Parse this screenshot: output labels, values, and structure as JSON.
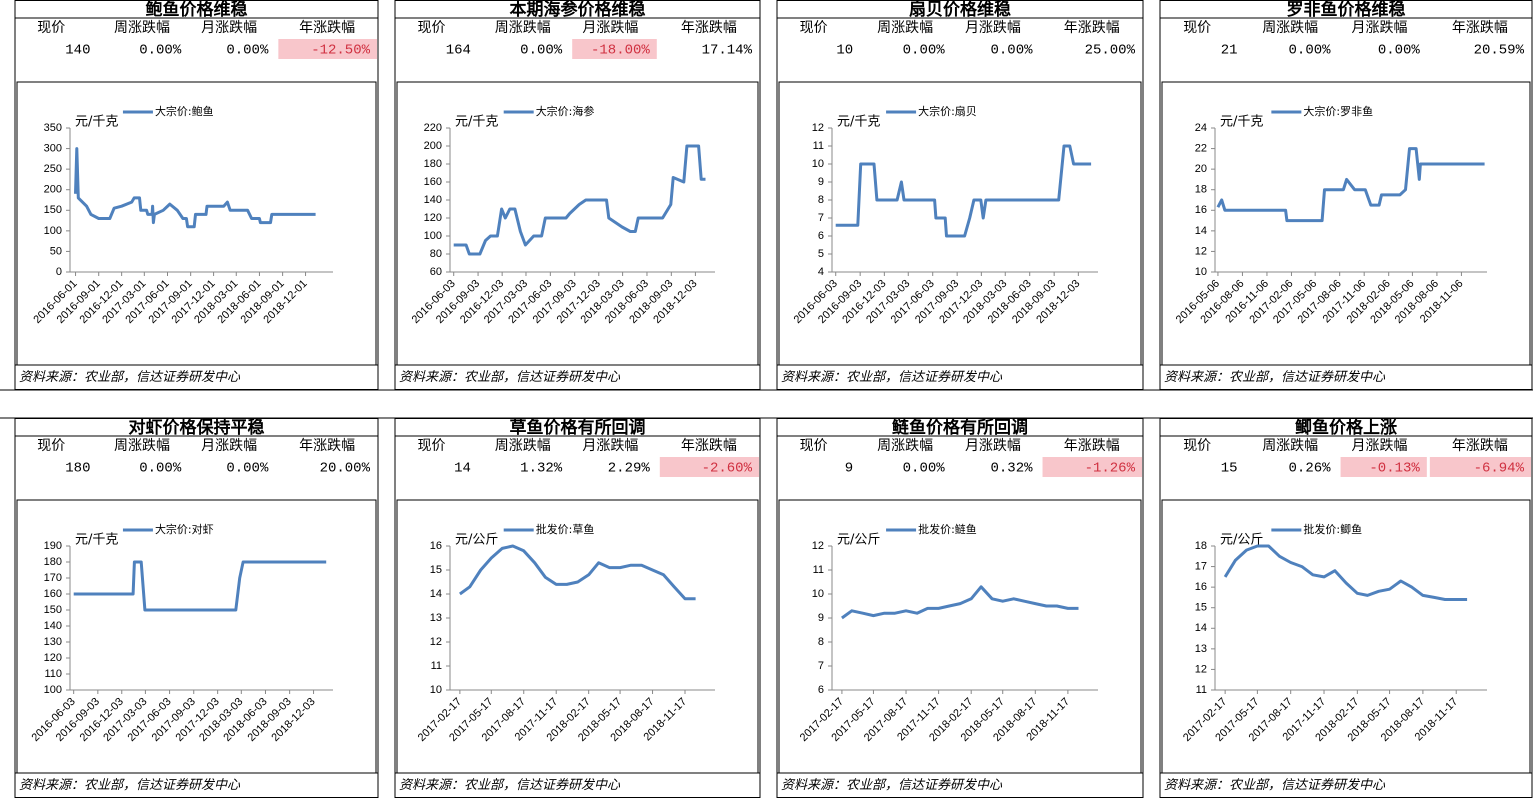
{
  "panels": [
    {
      "title": "鲍鱼价格维稳",
      "headers": [
        "现价",
        "周涨跌幅",
        "月涨跌幅",
        "年涨跌幅"
      ],
      "values": [
        "140",
        "0.00%",
        "0.00%",
        "-12.50%"
      ],
      "highlight": [
        3
      ],
      "source": "资料来源：农业部，信达证券研发中心"
    },
    {
      "title": "本期海参价格维稳",
      "headers": [
        "现价",
        "周涨跌幅",
        "月涨跌幅",
        "年涨跌幅"
      ],
      "values": [
        "164",
        "0.00%",
        "-18.00%",
        "17.14%"
      ],
      "highlight": [
        2
      ],
      "source": "资料来源：农业部，信达证券研发中心"
    },
    {
      "title": "扇贝价格维稳",
      "headers": [
        "现价",
        "周涨跌幅",
        "月涨跌幅",
        "年涨跌幅"
      ],
      "values": [
        "10",
        "0.00%",
        "0.00%",
        "25.00%"
      ],
      "highlight": [],
      "source": "资料来源：农业部，信达证券研发中心"
    },
    {
      "title": "罗非鱼价格维稳",
      "headers": [
        "现价",
        "周涨跌幅",
        "月涨跌幅",
        "年涨跌幅"
      ],
      "values": [
        "21",
        "0.00%",
        "0.00%",
        "20.59%"
      ],
      "highlight": [],
      "source": "资料来源：农业部，信达证券研发中心"
    },
    {
      "title": "对虾价格保持平稳",
      "headers": [
        "现价",
        "周涨跌幅",
        "月涨跌幅",
        "年涨跌幅"
      ],
      "values": [
        "180",
        "0.00%",
        "0.00%",
        "20.00%"
      ],
      "highlight": [],
      "source": "资料来源：农业部，信达证券研发中心"
    },
    {
      "title": "草鱼价格有所回调",
      "headers": [
        "现价",
        "周涨跌幅",
        "月涨跌幅",
        "年涨跌幅"
      ],
      "values": [
        "14",
        "1.32%",
        "2.29%",
        "-2.60%"
      ],
      "highlight": [
        3
      ],
      "source": "资料来源：农业部，信达证券研发中心"
    },
    {
      "title": "鲢鱼价格有所回调",
      "headers": [
        "现价",
        "周涨跌幅",
        "月涨跌幅",
        "年涨跌幅"
      ],
      "values": [
        "9",
        "0.00%",
        "0.32%",
        "-1.26%"
      ],
      "highlight": [
        3
      ],
      "source": "资料来源：农业部，信达证券研发中心"
    },
    {
      "title": "鲫鱼价格上涨",
      "headers": [
        "现价",
        "周涨跌幅",
        "月涨跌幅",
        "年涨跌幅"
      ],
      "values": [
        "15",
        "0.26%",
        "-0.13%",
        "-6.94%"
      ],
      "highlight": [
        2,
        3
      ],
      "source": "资料来源：农业部，信达证券研发中心"
    }
  ],
  "chart_data": [
    {
      "type": "line",
      "unit": "元/千克",
      "xlim": [
        "2016-05-10",
        "2019-03-20"
      ],
      "xticks": [
        "2016-06-01",
        "2016-09-01",
        "2016-12-01",
        "2017-03-01",
        "2017-06-01",
        "2017-09-01",
        "2017-12-01",
        "2018-03-01",
        "2018-06-01",
        "2018-09-01",
        "2018-12-01"
      ],
      "ylim": [
        0,
        350
      ],
      "yticks": [
        0,
        50,
        100,
        150,
        200,
        250,
        300,
        350
      ],
      "x": [
        "2016-06-01",
        "2016-06-06",
        "2016-06-12",
        "2016-07-15",
        "2016-08-01",
        "2016-09-01",
        "2016-10-15",
        "2016-11-01",
        "2016-12-01",
        "2017-01-10",
        "2017-01-20",
        "2017-02-10",
        "2017-02-15",
        "2017-03-10",
        "2017-03-15",
        "2017-04-01",
        "2017-04-03",
        "2017-04-06",
        "2017-04-10",
        "2017-05-15",
        "2017-06-10",
        "2017-07-10",
        "2017-08-01",
        "2017-08-15",
        "2017-08-20",
        "2017-09-15",
        "2017-09-20",
        "2017-11-01",
        "2017-11-05",
        "2018-01-10",
        "2018-01-25",
        "2018-02-05",
        "2018-04-15",
        "2018-05-01",
        "2018-06-01",
        "2018-06-05",
        "2018-07-15",
        "2018-07-20",
        "2018-12-01",
        "2019-01-10"
      ],
      "series": [
        {
          "name": "大宗价:鲍鱼",
          "color": "#4f81bd",
          "values": [
            190,
            300,
            180,
            160,
            140,
            130,
            130,
            155,
            160,
            170,
            180,
            180,
            150,
            150,
            140,
            140,
            160,
            120,
            140,
            150,
            165,
            150,
            130,
            130,
            110,
            110,
            140,
            140,
            160,
            160,
            170,
            150,
            150,
            130,
            130,
            120,
            120,
            140,
            140,
            140
          ]
        }
      ]
    },
    {
      "type": "line",
      "unit": "元/千克",
      "xlim": [
        "2016-05-20",
        "2019-02-15"
      ],
      "xticks": [
        "2016-06-03",
        "2016-09-03",
        "2016-12-03",
        "2017-03-03",
        "2017-06-03",
        "2017-09-03",
        "2017-12-03",
        "2018-03-03",
        "2018-06-03",
        "2018-09-03",
        "2018-12-03"
      ],
      "ylim": [
        60,
        220
      ],
      "yticks": [
        60,
        80,
        100,
        120,
        140,
        160,
        180,
        200,
        220
      ],
      "x": [
        "2016-06-03",
        "2016-07-20",
        "2016-08-01",
        "2016-09-10",
        "2016-10-01",
        "2016-10-20",
        "2016-11-15",
        "2016-12-01",
        "2016-12-15",
        "2017-01-01",
        "2017-01-20",
        "2017-02-10",
        "2017-03-01",
        "2017-04-01",
        "2017-05-01",
        "2017-05-15",
        "2017-08-01",
        "2017-08-15",
        "2017-09-20",
        "2017-10-15",
        "2018-01-01",
        "2018-01-10",
        "2018-03-01",
        "2018-04-01",
        "2018-04-20",
        "2018-05-01",
        "2018-08-01",
        "2018-09-01",
        "2018-09-10",
        "2018-10-20",
        "2018-11-01",
        "2018-12-15",
        "2018-12-25",
        "2019-01-10"
      ],
      "series": [
        {
          "name": "大宗价:海参",
          "color": "#4f81bd",
          "values": [
            90,
            90,
            80,
            80,
            95,
            100,
            100,
            130,
            120,
            130,
            130,
            105,
            90,
            100,
            100,
            120,
            120,
            125,
            135,
            140,
            140,
            120,
            110,
            105,
            105,
            120,
            120,
            135,
            165,
            160,
            200,
            200,
            163,
            163
          ]
        }
      ]
    },
    {
      "type": "line",
      "unit": "元/千克",
      "xlim": [
        "2016-05-20",
        "2019-02-15"
      ],
      "xticks": [
        "2016-06-03",
        "2016-09-03",
        "2016-12-03",
        "2017-03-03",
        "2017-06-03",
        "2017-09-03",
        "2017-12-03",
        "2018-03-03",
        "2018-06-03",
        "2018-09-03",
        "2018-12-03"
      ],
      "ylim": [
        4,
        12
      ],
      "yticks": [
        4,
        5,
        6,
        7,
        8,
        9,
        10,
        11,
        12
      ],
      "x": [
        "2016-06-03",
        "2016-08-25",
        "2016-09-05",
        "2016-10-25",
        "2016-11-05",
        "2017-01-20",
        "2017-02-05",
        "2017-02-15",
        "2017-06-10",
        "2017-06-15",
        "2017-07-20",
        "2017-07-25",
        "2017-10-01",
        "2017-10-20",
        "2017-11-05",
        "2017-12-01",
        "2017-12-10",
        "2017-12-20",
        "2018-09-20",
        "2018-10-10",
        "2018-11-01",
        "2018-11-15",
        "2019-01-20"
      ],
      "series": [
        {
          "name": "大宗价:扇贝",
          "color": "#4f81bd",
          "values": [
            6.6,
            6.6,
            10,
            10,
            8,
            8,
            9,
            8,
            8,
            7,
            7,
            6,
            6,
            7,
            8,
            8,
            7,
            8,
            8,
            11,
            11,
            10,
            10
          ]
        }
      ]
    },
    {
      "type": "line",
      "unit": "元/千克",
      "xlim": [
        "2016-04-25",
        "2019-02-10"
      ],
      "xticks": [
        "2016-05-06",
        "2016-08-06",
        "2016-11-06",
        "2017-02-06",
        "2017-05-06",
        "2017-08-06",
        "2017-11-06",
        "2018-02-06",
        "2018-05-06",
        "2018-08-06",
        "2018-11-06"
      ],
      "ylim": [
        10,
        24
      ],
      "yticks": [
        10,
        12,
        14,
        16,
        18,
        20,
        22,
        24
      ],
      "x": [
        "2016-05-06",
        "2016-05-20",
        "2016-06-01",
        "2017-01-15",
        "2017-01-20",
        "2017-06-01",
        "2017-06-10",
        "2017-08-20",
        "2017-09-01",
        "2017-10-01",
        "2017-11-10",
        "2017-12-01",
        "2018-01-01",
        "2018-01-10",
        "2018-03-20",
        "2018-04-10",
        "2018-04-25",
        "2018-05-20",
        "2018-06-01",
        "2018-06-05",
        "2019-02-01"
      ],
      "series": [
        {
          "name": "大宗价:罗非鱼",
          "color": "#4f81bd",
          "values": [
            16.3,
            17,
            16,
            16,
            15,
            15,
            18,
            18,
            19,
            18,
            18,
            16.5,
            16.5,
            17.5,
            17.5,
            18,
            22,
            22,
            19,
            20.5,
            20.5
          ]
        }
      ]
    },
    {
      "type": "line",
      "unit": "元/千克",
      "xlim": [
        "2016-05-20",
        "2019-02-15"
      ],
      "xticks": [
        "2016-06-03",
        "2016-09-03",
        "2016-12-03",
        "2017-03-03",
        "2017-06-03",
        "2017-09-03",
        "2017-12-03",
        "2018-03-03",
        "2018-06-03",
        "2018-09-03",
        "2018-12-03"
      ],
      "ylim": [
        100,
        190
      ],
      "yticks": [
        100,
        110,
        120,
        130,
        140,
        150,
        160,
        170,
        180,
        190
      ],
      "x": [
        "2016-06-03",
        "2017-01-15",
        "2017-01-20",
        "2017-02-15",
        "2017-03-01",
        "2018-02-10",
        "2018-02-25",
        "2018-03-10",
        "2019-01-20"
      ],
      "series": [
        {
          "name": "大宗价:对虾",
          "color": "#4f81bd",
          "values": [
            160,
            160,
            180,
            180,
            150,
            150,
            170,
            180,
            180
          ]
        }
      ]
    },
    {
      "type": "line",
      "unit": "元/公斤",
      "xlim": [
        "2017-01-20",
        "2019-02-10"
      ],
      "xticks": [
        "2017-02-17",
        "2017-05-17",
        "2017-08-17",
        "2017-11-17",
        "2018-02-17",
        "2018-05-17",
        "2018-08-17",
        "2018-11-17"
      ],
      "ylim": [
        10,
        16
      ],
      "yticks": [
        10,
        11,
        12,
        13,
        14,
        15,
        16
      ],
      "x": [
        "2017-02-17",
        "2017-03-17",
        "2017-04-17",
        "2017-05-17",
        "2017-06-17",
        "2017-07-17",
        "2017-08-17",
        "2017-09-17",
        "2017-10-17",
        "2017-11-17",
        "2017-12-17",
        "2018-01-17",
        "2018-02-17",
        "2018-03-17",
        "2018-04-17",
        "2018-05-17",
        "2018-06-17",
        "2018-07-17",
        "2018-08-17",
        "2018-09-17",
        "2018-10-17",
        "2018-11-17",
        "2018-12-17"
      ],
      "series": [
        {
          "name": "批发价:草鱼",
          "color": "#4f81bd",
          "values": [
            14,
            14.3,
            15,
            15.5,
            15.9,
            16,
            15.8,
            15.3,
            14.7,
            14.4,
            14.4,
            14.5,
            14.8,
            15.3,
            15.1,
            15.1,
            15.2,
            15.2,
            15,
            14.8,
            14.3,
            13.8,
            13.8
          ]
        }
      ]
    },
    {
      "type": "line",
      "unit": "元/公斤",
      "xlim": [
        "2017-01-20",
        "2019-02-10"
      ],
      "xticks": [
        "2017-02-17",
        "2017-05-17",
        "2017-08-17",
        "2017-11-17",
        "2018-02-17",
        "2018-05-17",
        "2018-08-17",
        "2018-11-17"
      ],
      "ylim": [
        6,
        12
      ],
      "yticks": [
        6,
        7,
        8,
        9,
        10,
        11,
        12
      ],
      "x": [
        "2017-02-17",
        "2017-03-17",
        "2017-04-17",
        "2017-05-17",
        "2017-06-17",
        "2017-07-17",
        "2017-08-17",
        "2017-09-17",
        "2017-10-17",
        "2017-11-17",
        "2017-12-17",
        "2018-01-17",
        "2018-02-17",
        "2018-03-17",
        "2018-04-17",
        "2018-05-17",
        "2018-06-17",
        "2018-07-17",
        "2018-08-17",
        "2018-09-17",
        "2018-10-17",
        "2018-11-17",
        "2018-12-17"
      ],
      "series": [
        {
          "name": "批发价:鲢鱼",
          "color": "#4f81bd",
          "values": [
            9,
            9.3,
            9.2,
            9.1,
            9.2,
            9.2,
            9.3,
            9.2,
            9.4,
            9.4,
            9.5,
            9.6,
            9.8,
            10.3,
            9.8,
            9.7,
            9.8,
            9.7,
            9.6,
            9.5,
            9.5,
            9.4,
            9.4
          ]
        }
      ]
    },
    {
      "type": "line",
      "unit": "元/公斤",
      "xlim": [
        "2017-01-20",
        "2019-02-10"
      ],
      "xticks": [
        "2017-02-17",
        "2017-05-17",
        "2017-08-17",
        "2017-11-17",
        "2018-02-17",
        "2018-05-17",
        "2018-08-17",
        "2018-11-17"
      ],
      "ylim": [
        11,
        18
      ],
      "yticks": [
        11,
        12,
        13,
        14,
        15,
        16,
        17,
        18
      ],
      "x": [
        "2017-02-17",
        "2017-03-17",
        "2017-04-17",
        "2017-05-17",
        "2017-06-17",
        "2017-07-17",
        "2017-08-17",
        "2017-09-17",
        "2017-10-17",
        "2017-11-17",
        "2017-12-17",
        "2018-01-17",
        "2018-02-17",
        "2018-03-17",
        "2018-04-17",
        "2018-05-17",
        "2018-06-17",
        "2018-07-17",
        "2018-08-17",
        "2018-09-17",
        "2018-10-17",
        "2018-11-17",
        "2018-12-17"
      ],
      "series": [
        {
          "name": "批发价:鲫鱼",
          "color": "#4f81bd",
          "values": [
            16.5,
            17.3,
            17.8,
            18,
            18,
            17.5,
            17.2,
            17,
            16.6,
            16.5,
            16.8,
            16.2,
            15.7,
            15.6,
            15.8,
            15.9,
            16.3,
            16,
            15.6,
            15.5,
            15.4,
            15.4,
            15.4
          ]
        }
      ]
    }
  ]
}
